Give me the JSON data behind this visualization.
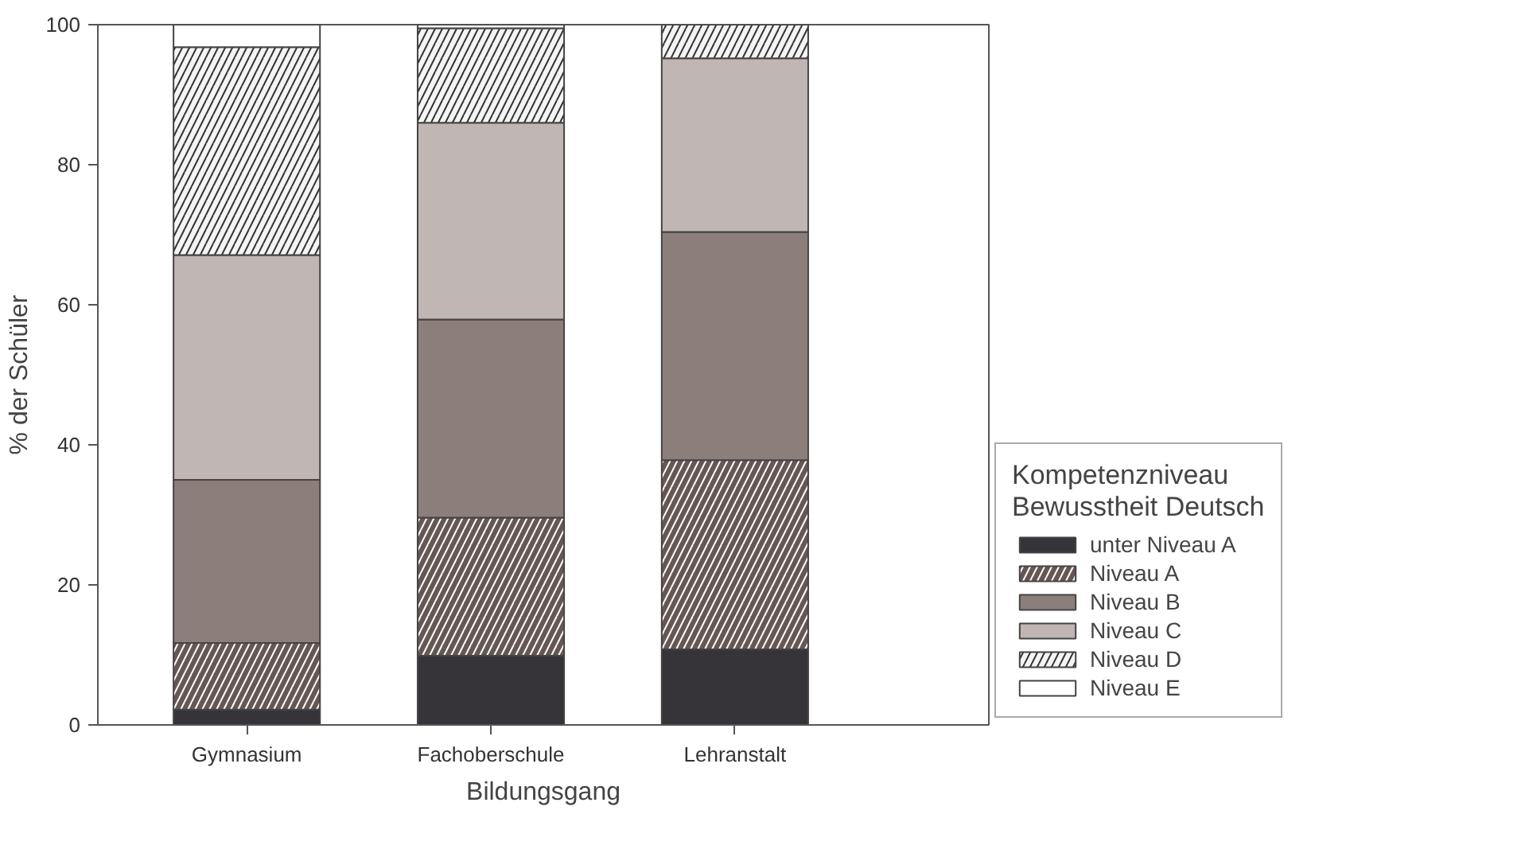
{
  "chart_data": {
    "type": "bar",
    "stacked": true,
    "xlabel": "Bildungsgang",
    "ylabel": "% der Schüler",
    "legend_title": "Kompetenzniveau\nBewusstheit Deutsch",
    "categories": [
      "Gymnasium",
      "Fachoberschule",
      "Lehranstalt"
    ],
    "series": [
      {
        "name": "unter Niveau A",
        "color": "#363438",
        "values": [
          2.2,
          9.9,
          10.8
        ]
      },
      {
        "name": "Niveau A",
        "color": "#665755",
        "values": [
          9.5,
          19.7,
          27.0
        ]
      },
      {
        "name": "Niveau B",
        "color": "#8c7f7b",
        "values": [
          23.3,
          28.3,
          32.6
        ]
      },
      {
        "name": "Niveau C",
        "color": "#c0b6b3",
        "values": [
          32.1,
          28.1,
          24.8
        ]
      },
      {
        "name": "Niveau D",
        "color": "#f4f4f4",
        "values": [
          29.7,
          13.5,
          4.8
        ]
      },
      {
        "name": "Niveau E",
        "color": "#ffffff",
        "values": [
          3.2,
          0.5,
          null
        ]
      }
    ],
    "ylim": [
      0,
      100
    ],
    "yticks": [
      0,
      20,
      40,
      60,
      80,
      100
    ],
    "grid": false,
    "legend": "right"
  }
}
